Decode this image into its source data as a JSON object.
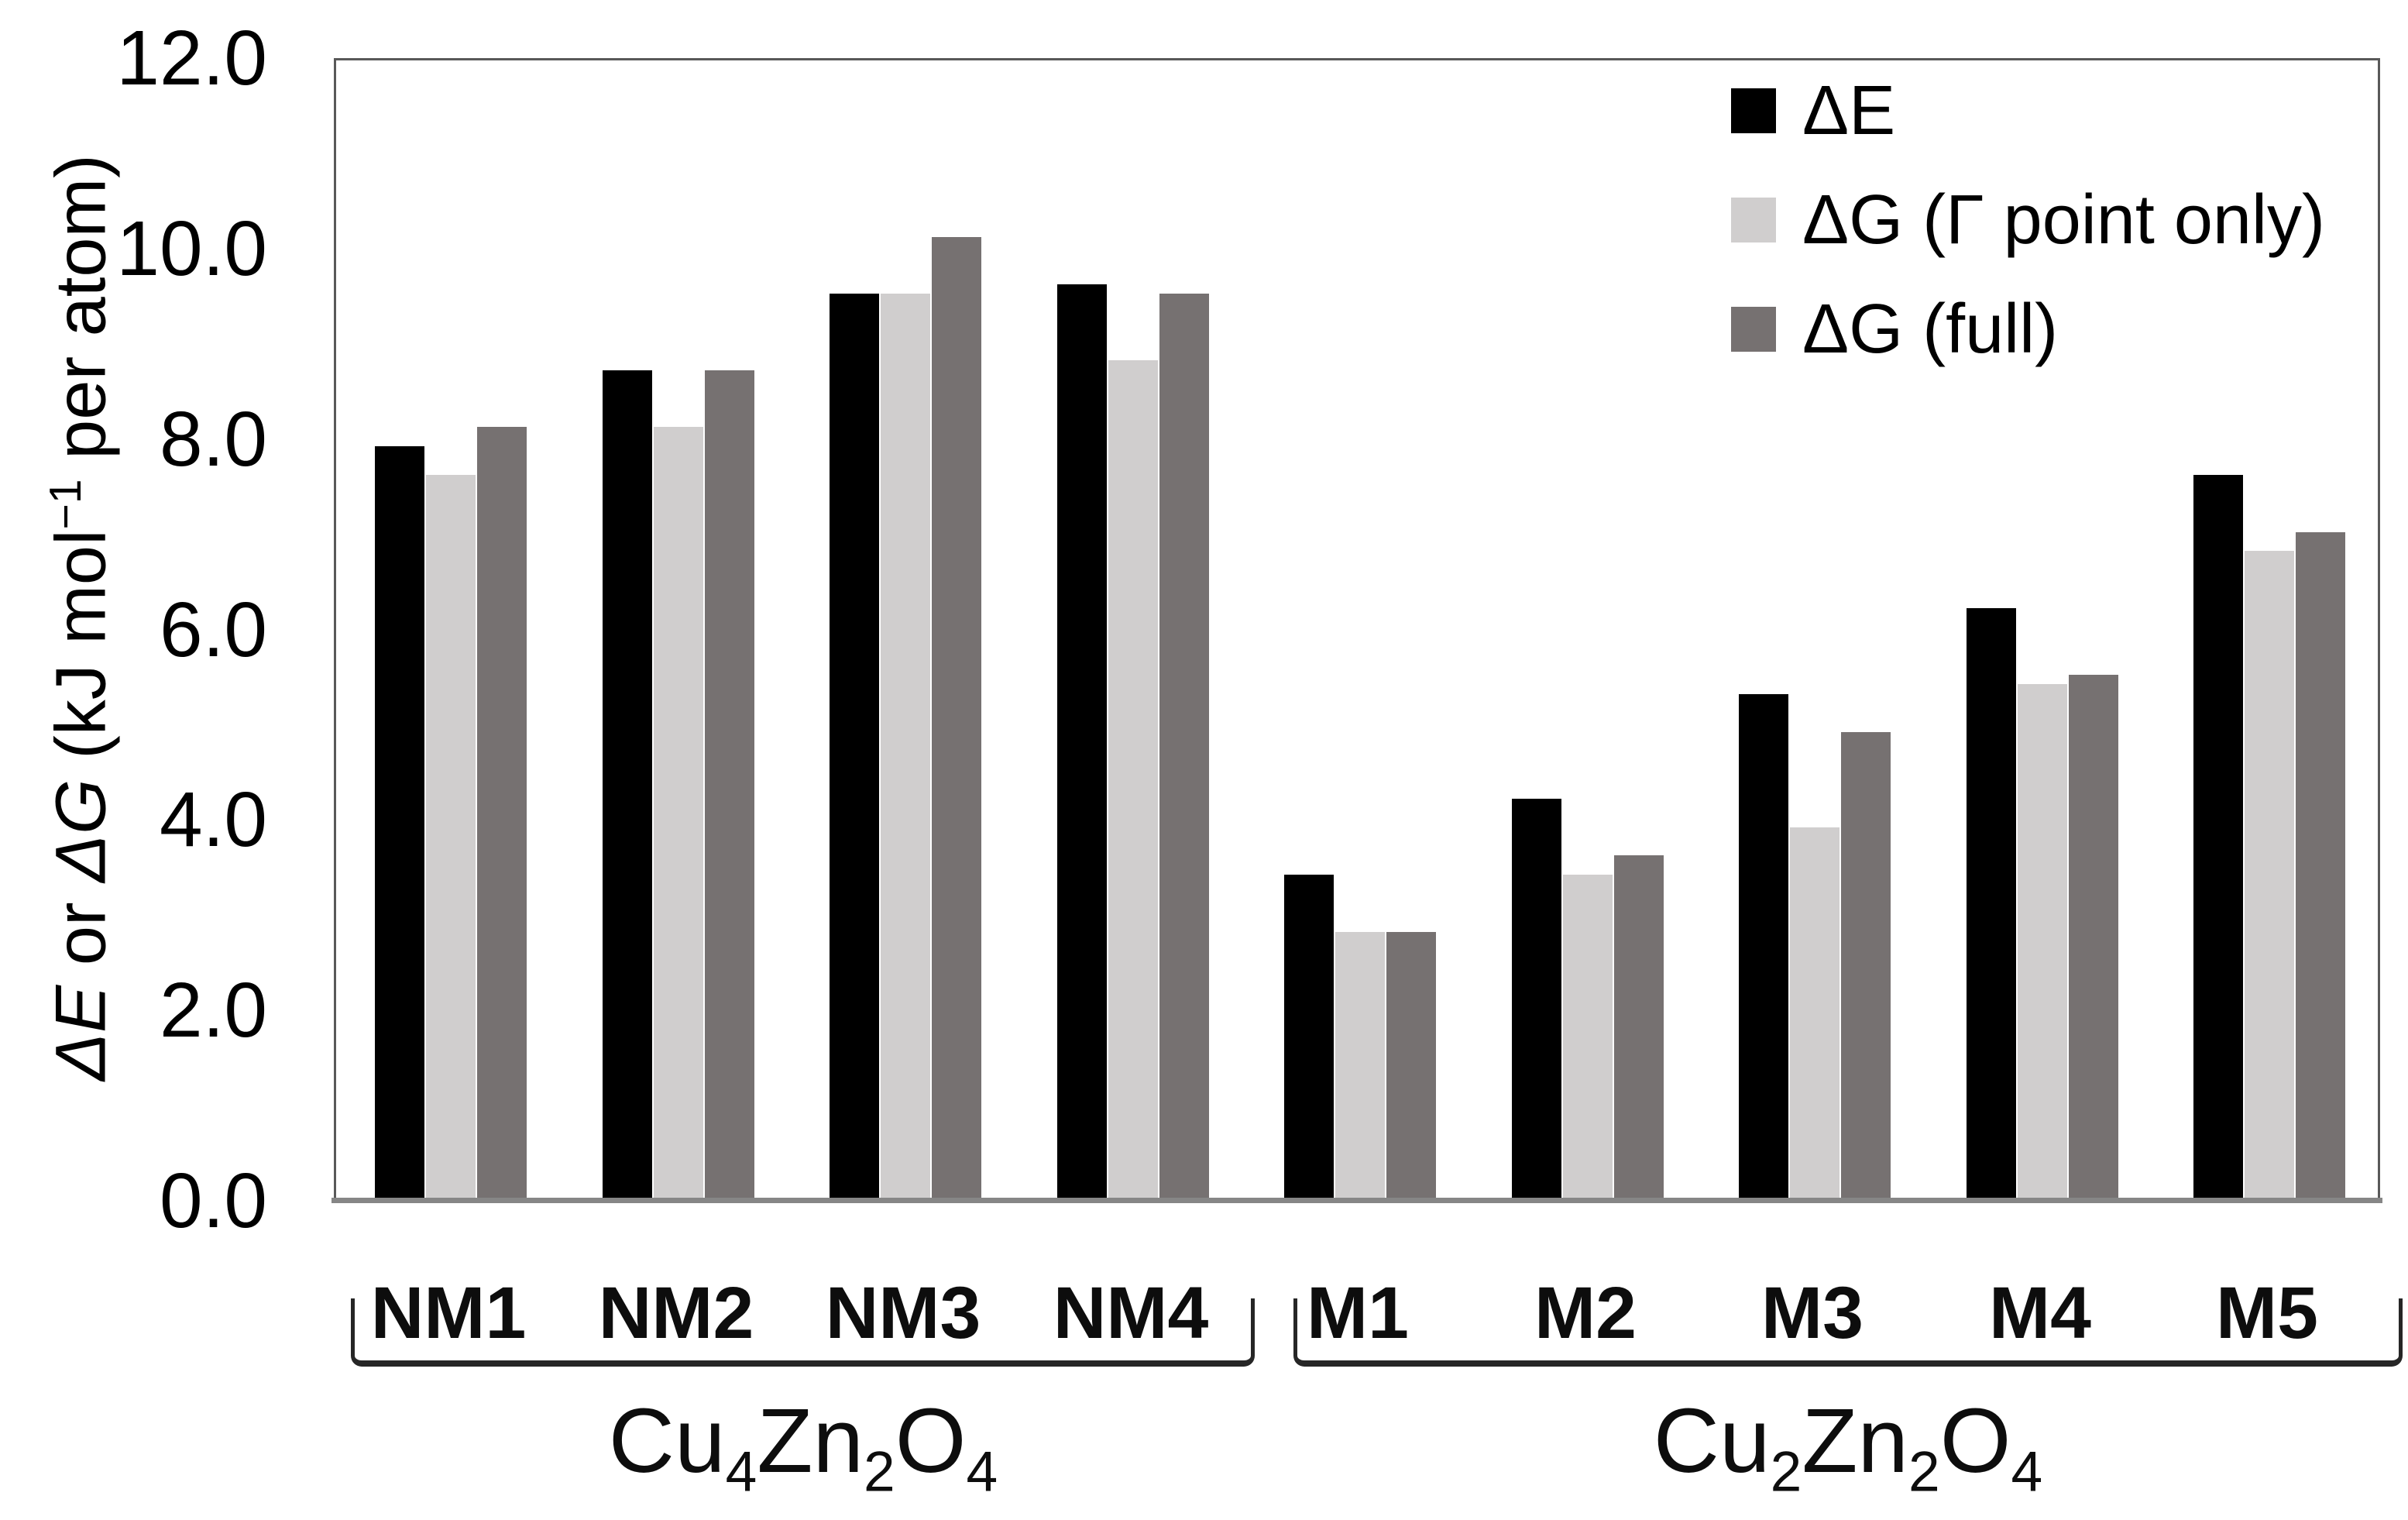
{
  "chart_data": {
    "type": "bar",
    "title": "",
    "categories": [
      "NM1",
      "NM2",
      "NM3",
      "NM4",
      "M1",
      "M2",
      "M3",
      "M4",
      "M5"
    ],
    "series": [
      {
        "name": "ΔE",
        "color": "#000000",
        "values": [
          7.9,
          8.7,
          9.5,
          9.6,
          3.4,
          4.2,
          5.3,
          6.2,
          7.6
        ]
      },
      {
        "name": "ΔG (Γ point only)",
        "color": "#d0cece",
        "values": [
          7.6,
          8.1,
          9.5,
          8.8,
          2.8,
          3.4,
          3.9,
          5.4,
          6.8
        ]
      },
      {
        "name": "ΔG (full)",
        "color": "#767171",
        "values": [
          8.1,
          8.7,
          10.1,
          9.5,
          2.8,
          3.6,
          4.9,
          5.5,
          7.0
        ]
      }
    ],
    "ylabel": "ΔE or ΔG (kJ mol−1 per atom)",
    "ylabel_segments": [
      {
        "t": "ΔE",
        "italic": true
      },
      {
        "t": " or ",
        "italic": false
      },
      {
        "t": "ΔG",
        "italic": true
      },
      {
        "t": " (kJ mol",
        "italic": false
      },
      {
        "t": "−1",
        "sup": true
      },
      {
        "t": " per atom)",
        "italic": false
      }
    ],
    "ylim": [
      0,
      12
    ],
    "ytick_step": 2,
    "ytick_labels": [
      "0.0",
      "2.0",
      "4.0",
      "6.0",
      "8.0",
      "10.0",
      "12.0"
    ],
    "grid": false,
    "legend_position": "top-right-inside",
    "group_brackets": [
      {
        "label": "Cu4Zn2O4",
        "formula_segments": [
          {
            "t": "Cu",
            "sub": "4"
          },
          {
            "t": "Zn",
            "sub": "2"
          },
          {
            "t": "O",
            "sub": "4"
          }
        ],
        "categories": [
          "NM1",
          "NM2",
          "NM3",
          "NM4"
        ]
      },
      {
        "label": "Cu2Zn2O4",
        "formula_segments": [
          {
            "t": "Cu",
            "sub": "2"
          },
          {
            "t": "Zn",
            "sub": "2"
          },
          {
            "t": "O",
            "sub": "4"
          }
        ],
        "categories": [
          "M1",
          "M2",
          "M3",
          "M4",
          "M5"
        ]
      }
    ]
  }
}
